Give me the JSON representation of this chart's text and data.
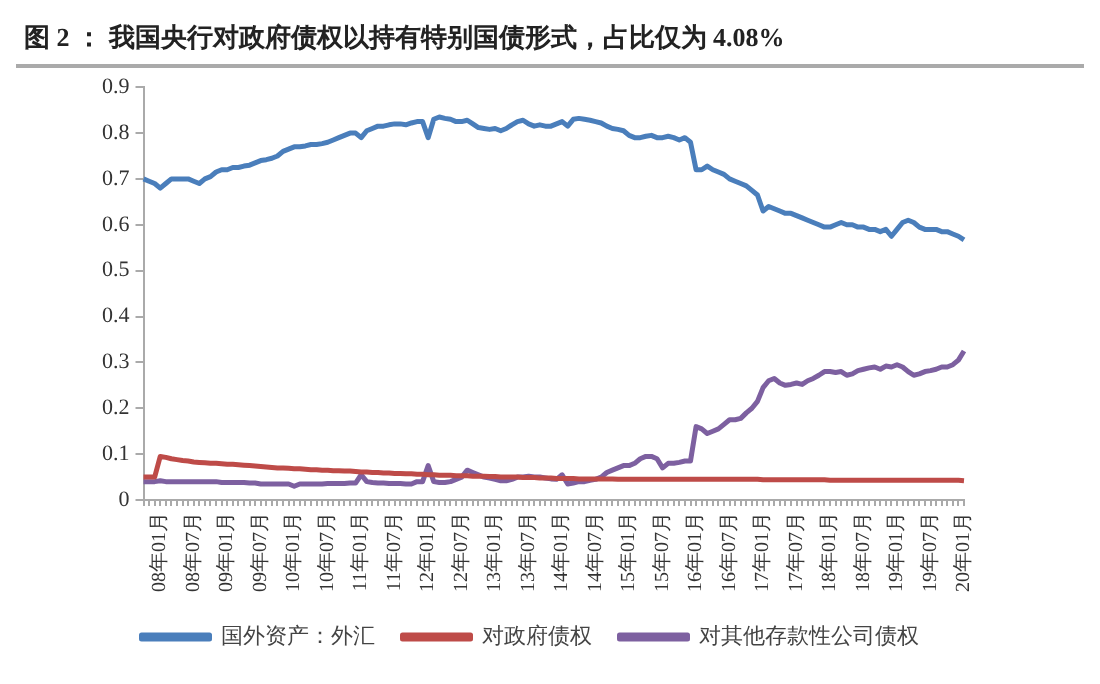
{
  "chart_data": {
    "type": "line",
    "title": "图 2 ： 我国央行对政府债权以持有特别国债形式，占比仅为 4.08%",
    "categories": [
      null,
      null,
      null,
      "08年01月",
      null,
      null,
      null,
      null,
      null,
      "08年07月",
      null,
      null,
      null,
      null,
      null,
      "09年01月",
      null,
      null,
      null,
      null,
      null,
      "09年07月",
      null,
      null,
      null,
      null,
      null,
      "10年01月",
      null,
      null,
      null,
      null,
      null,
      "10年07月",
      null,
      null,
      null,
      null,
      null,
      "11年01月",
      null,
      null,
      null,
      null,
      null,
      "11年07月",
      null,
      null,
      null,
      null,
      null,
      "12年01月",
      null,
      null,
      null,
      null,
      null,
      "12年07月",
      null,
      null,
      null,
      null,
      null,
      "13年01月",
      null,
      null,
      null,
      null,
      null,
      "13年07月",
      null,
      null,
      null,
      null,
      null,
      "14年01月",
      null,
      null,
      null,
      null,
      null,
      "14年07月",
      null,
      null,
      null,
      null,
      null,
      "15年01月",
      null,
      null,
      null,
      null,
      null,
      "15年07月",
      null,
      null,
      null,
      null,
      null,
      "16年01月",
      null,
      null,
      null,
      null,
      null,
      "16年07月",
      null,
      null,
      null,
      null,
      null,
      "17年01月",
      null,
      null,
      null,
      null,
      null,
      "17年07月",
      null,
      null,
      null,
      null,
      null,
      "18年01月",
      null,
      null,
      null,
      null,
      null,
      "18年07月",
      null,
      null,
      null,
      null,
      null,
      "19年01月",
      null,
      null,
      null,
      null,
      null,
      "19年07月",
      null,
      null,
      null,
      null,
      null,
      "20年01月"
    ],
    "series": [
      {
        "name": "国外资产：外汇",
        "color": "#4a7ebb",
        "values": [
          0.7,
          0.695,
          0.69,
          0.68,
          0.69,
          0.7,
          0.7,
          0.7,
          0.7,
          0.695,
          0.69,
          0.7,
          0.705,
          0.715,
          0.72,
          0.72,
          0.725,
          0.725,
          0.728,
          0.73,
          0.735,
          0.74,
          0.742,
          0.745,
          0.75,
          0.76,
          0.765,
          0.77,
          0.77,
          0.772,
          0.775,
          0.775,
          0.777,
          0.78,
          0.785,
          0.79,
          0.795,
          0.8,
          0.8,
          0.79,
          0.805,
          0.81,
          0.815,
          0.815,
          0.818,
          0.82,
          0.82,
          0.818,
          0.822,
          0.825,
          0.825,
          0.79,
          0.83,
          0.835,
          0.832,
          0.83,
          0.825,
          0.825,
          0.828,
          0.82,
          0.812,
          0.81,
          0.808,
          0.81,
          0.805,
          0.81,
          0.818,
          0.825,
          0.828,
          0.82,
          0.815,
          0.818,
          0.815,
          0.815,
          0.82,
          0.825,
          0.815,
          0.83,
          0.832,
          0.83,
          0.828,
          0.825,
          0.822,
          0.815,
          0.81,
          0.808,
          0.805,
          0.795,
          0.79,
          0.79,
          0.793,
          0.795,
          0.79,
          0.79,
          0.793,
          0.79,
          0.785,
          0.79,
          0.78,
          0.72,
          0.72,
          0.728,
          0.72,
          0.715,
          0.71,
          0.7,
          0.695,
          0.69,
          0.685,
          0.675,
          0.665,
          0.63,
          0.64,
          0.635,
          0.63,
          0.625,
          0.625,
          0.62,
          0.615,
          0.61,
          0.605,
          0.6,
          0.595,
          0.595,
          0.6,
          0.605,
          0.6,
          0.6,
          0.595,
          0.595,
          0.59,
          0.59,
          0.585,
          0.59,
          0.575,
          0.59,
          0.605,
          0.61,
          0.605,
          0.595,
          0.59,
          0.59,
          0.59,
          0.585,
          0.585,
          0.58,
          0.575,
          0.567
        ]
      },
      {
        "name": "对政府债权",
        "color": "#be4b48",
        "values": [
          0.05,
          0.05,
          0.05,
          0.095,
          0.093,
          0.09,
          0.088,
          0.086,
          0.085,
          0.083,
          0.082,
          0.081,
          0.08,
          0.08,
          0.079,
          0.078,
          0.078,
          0.077,
          0.076,
          0.075,
          0.074,
          0.073,
          0.072,
          0.071,
          0.07,
          0.07,
          0.069,
          0.068,
          0.068,
          0.067,
          0.066,
          0.066,
          0.065,
          0.065,
          0.064,
          0.064,
          0.063,
          0.063,
          0.062,
          0.061,
          0.061,
          0.06,
          0.06,
          0.059,
          0.059,
          0.058,
          0.058,
          0.057,
          0.057,
          0.056,
          0.056,
          0.055,
          0.055,
          0.054,
          0.054,
          0.054,
          0.053,
          0.053,
          0.053,
          0.052,
          0.052,
          0.052,
          0.051,
          0.051,
          0.05,
          0.05,
          0.05,
          0.05,
          0.049,
          0.049,
          0.049,
          0.048,
          0.048,
          0.048,
          0.047,
          0.047,
          0.047,
          0.047,
          0.046,
          0.046,
          0.046,
          0.046,
          0.046,
          0.046,
          0.046,
          0.045,
          0.045,
          0.045,
          0.045,
          0.045,
          0.045,
          0.045,
          0.045,
          0.045,
          0.045,
          0.045,
          0.045,
          0.045,
          0.045,
          0.045,
          0.045,
          0.045,
          0.045,
          0.045,
          0.045,
          0.045,
          0.045,
          0.045,
          0.045,
          0.045,
          0.045,
          0.044,
          0.044,
          0.044,
          0.044,
          0.044,
          0.044,
          0.044,
          0.044,
          0.044,
          0.044,
          0.044,
          0.044,
          0.043,
          0.043,
          0.043,
          0.043,
          0.043,
          0.043,
          0.043,
          0.043,
          0.043,
          0.043,
          0.043,
          0.043,
          0.043,
          0.043,
          0.043,
          0.043,
          0.043,
          0.043,
          0.043,
          0.043,
          0.043,
          0.043,
          0.043,
          0.043,
          0.042
        ]
      },
      {
        "name": "对其他存款性公司债权",
        "color": "#7d60a0",
        "values": [
          0.04,
          0.04,
          0.04,
          0.042,
          0.04,
          0.04,
          0.04,
          0.04,
          0.04,
          0.04,
          0.04,
          0.04,
          0.04,
          0.04,
          0.038,
          0.038,
          0.038,
          0.038,
          0.038,
          0.037,
          0.037,
          0.035,
          0.035,
          0.035,
          0.035,
          0.035,
          0.035,
          0.03,
          0.035,
          0.035,
          0.035,
          0.035,
          0.035,
          0.036,
          0.036,
          0.036,
          0.036,
          0.037,
          0.037,
          0.055,
          0.04,
          0.038,
          0.037,
          0.037,
          0.036,
          0.036,
          0.036,
          0.035,
          0.035,
          0.04,
          0.04,
          0.075,
          0.04,
          0.038,
          0.038,
          0.04,
          0.045,
          0.05,
          0.065,
          0.06,
          0.055,
          0.05,
          0.048,
          0.045,
          0.042,
          0.042,
          0.045,
          0.05,
          0.05,
          0.052,
          0.05,
          0.05,
          0.048,
          0.046,
          0.045,
          0.055,
          0.035,
          0.037,
          0.04,
          0.04,
          0.043,
          0.045,
          0.05,
          0.06,
          0.065,
          0.07,
          0.075,
          0.075,
          0.08,
          0.09,
          0.095,
          0.095,
          0.09,
          0.07,
          0.08,
          0.08,
          0.082,
          0.085,
          0.085,
          0.16,
          0.155,
          0.145,
          0.15,
          0.155,
          0.165,
          0.175,
          0.175,
          0.178,
          0.19,
          0.2,
          0.215,
          0.245,
          0.26,
          0.265,
          0.255,
          0.25,
          0.252,
          0.255,
          0.252,
          0.26,
          0.265,
          0.272,
          0.28,
          0.28,
          0.278,
          0.28,
          0.272,
          0.275,
          0.282,
          0.285,
          0.288,
          0.29,
          0.285,
          0.292,
          0.29,
          0.295,
          0.29,
          0.28,
          0.272,
          0.275,
          0.28,
          0.282,
          0.285,
          0.29,
          0.29,
          0.295,
          0.305,
          0.325
        ]
      }
    ],
    "ylim": [
      0,
      0.9
    ],
    "yticks": [
      0,
      0.1,
      0.2,
      0.3,
      0.4,
      0.5,
      0.6,
      0.7,
      0.8,
      0.9
    ],
    "grid": false,
    "legend": "bottom",
    "marker": "none",
    "line_style": "solid"
  }
}
